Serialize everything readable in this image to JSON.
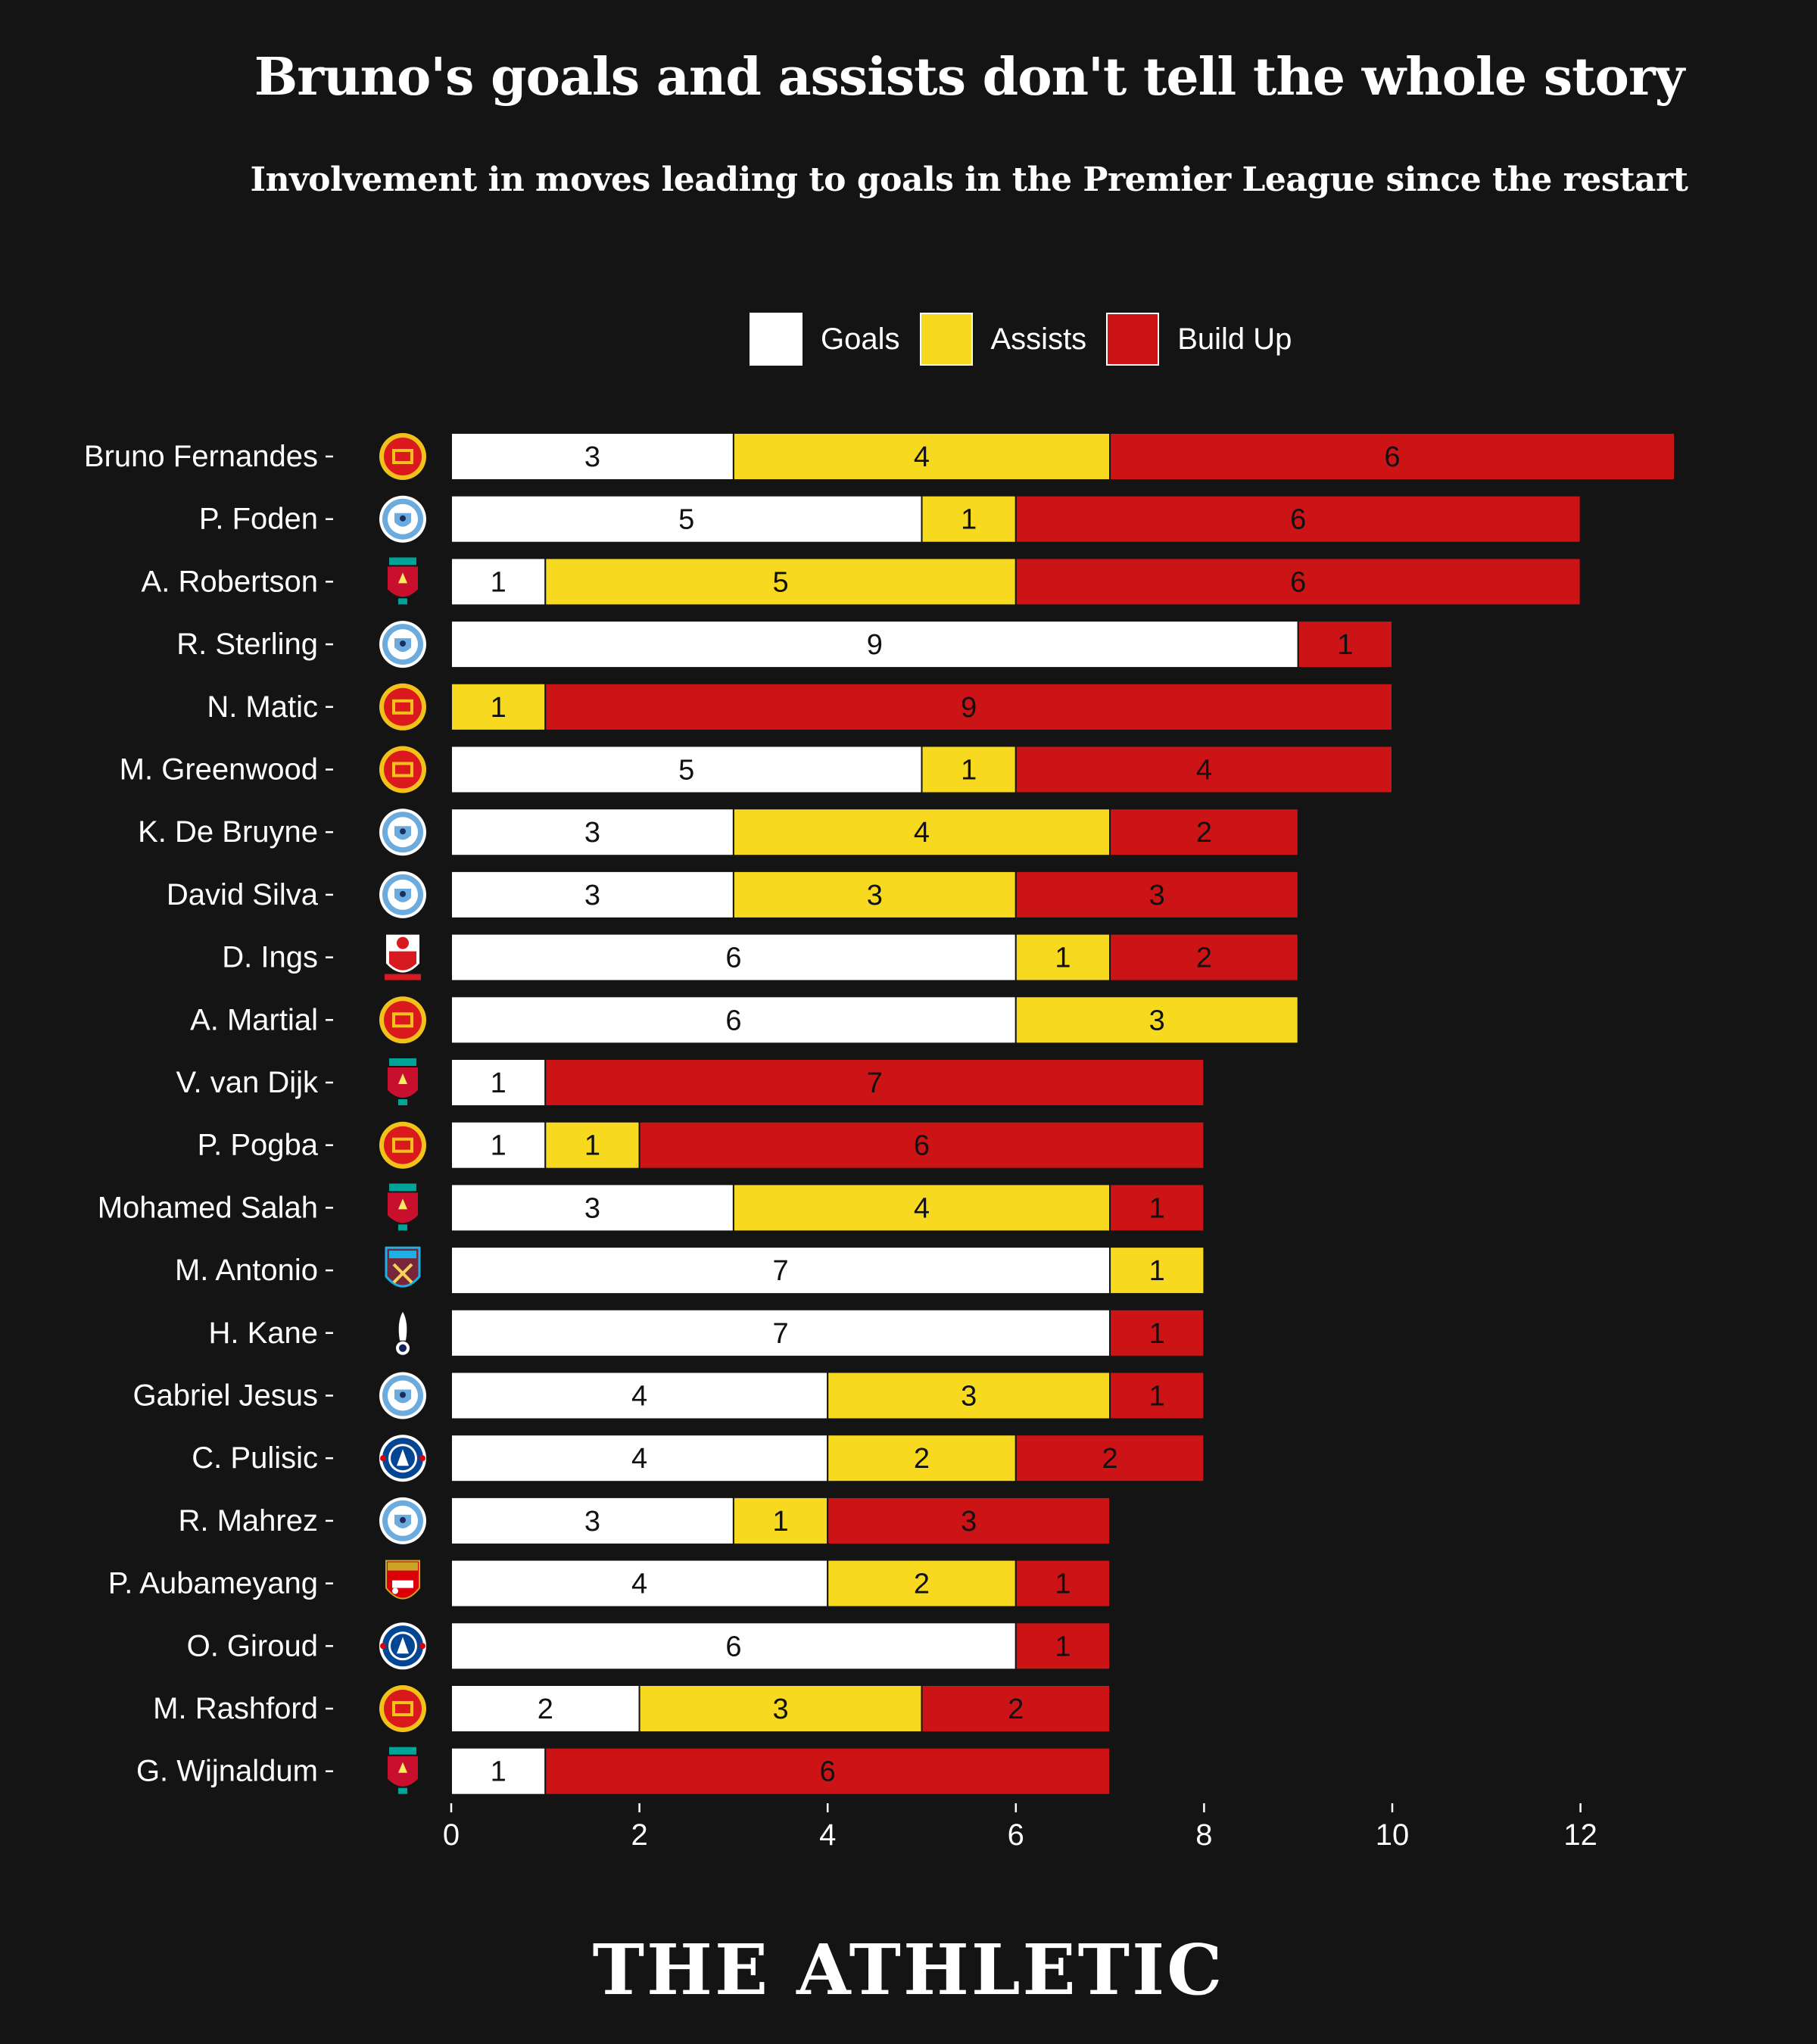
{
  "title": "Bruno's goals and assists don't tell the whole story",
  "subtitle": "Involvement in moves leading to goals in the Premier League since the restart",
  "branding": "THE ATHLETIC",
  "colors": {
    "background": "#141414",
    "goals": "#ffffff",
    "assists": "#f7da1f",
    "build_up": "#cc1417"
  },
  "club_badges": {
    "man-utd": "manchester-united-crest-icon",
    "man-city": "manchester-city-crest-icon",
    "liverpool": "liverpool-crest-icon",
    "southampton": "southampton-crest-icon",
    "west-ham": "west-ham-crest-icon",
    "tottenham": "tottenham-crest-icon",
    "chelsea": "chelsea-crest-icon",
    "arsenal": "arsenal-crest-icon"
  },
  "chart_data": {
    "type": "bar",
    "orientation": "horizontal",
    "stacked": true,
    "title": "Bruno's goals and assists don't tell the whole story",
    "subtitle": "Involvement in moves leading to goals in the Premier League since the restart",
    "legend": {
      "placement": "top-center",
      "entries": [
        "Goals",
        "Assists",
        "Build Up"
      ]
    },
    "xlim": [
      0,
      13
    ],
    "xticks": [
      0,
      2,
      4,
      6,
      8,
      10,
      12
    ],
    "grid": false,
    "categories": [
      "Bruno Fernandes",
      "P. Foden",
      "A. Robertson",
      "R. Sterling",
      "N. Matic",
      "M. Greenwood",
      "K. De Bruyne",
      "David Silva",
      "D. Ings",
      "A. Martial",
      "V. van Dijk",
      "P. Pogba",
      "Mohamed Salah",
      "M. Antonio",
      "H. Kane",
      "Gabriel Jesus",
      "C. Pulisic",
      "R. Mahrez",
      "P. Aubameyang",
      "O. Giroud",
      "M. Rashford",
      "G. Wijnaldum"
    ],
    "clubs": [
      "man-utd",
      "man-city",
      "liverpool",
      "man-city",
      "man-utd",
      "man-utd",
      "man-city",
      "man-city",
      "southampton",
      "man-utd",
      "liverpool",
      "man-utd",
      "liverpool",
      "west-ham",
      "tottenham",
      "man-city",
      "chelsea",
      "man-city",
      "arsenal",
      "chelsea",
      "man-utd",
      "liverpool"
    ],
    "series": [
      {
        "name": "Goals",
        "color": "#ffffff",
        "values": [
          3,
          5,
          1,
          9,
          0,
          5,
          3,
          3,
          6,
          6,
          1,
          1,
          3,
          7,
          7,
          4,
          4,
          3,
          4,
          6,
          2,
          1
        ]
      },
      {
        "name": "Assists",
        "color": "#f7da1f",
        "values": [
          4,
          1,
          5,
          0,
          1,
          1,
          4,
          3,
          1,
          3,
          0,
          1,
          4,
          1,
          0,
          3,
          2,
          1,
          2,
          0,
          3,
          0
        ]
      },
      {
        "name": "Build Up",
        "color": "#cc1417",
        "values": [
          6,
          6,
          6,
          1,
          9,
          4,
          2,
          3,
          2,
          0,
          7,
          6,
          1,
          0,
          1,
          1,
          2,
          3,
          1,
          1,
          2,
          6
        ]
      }
    ]
  }
}
